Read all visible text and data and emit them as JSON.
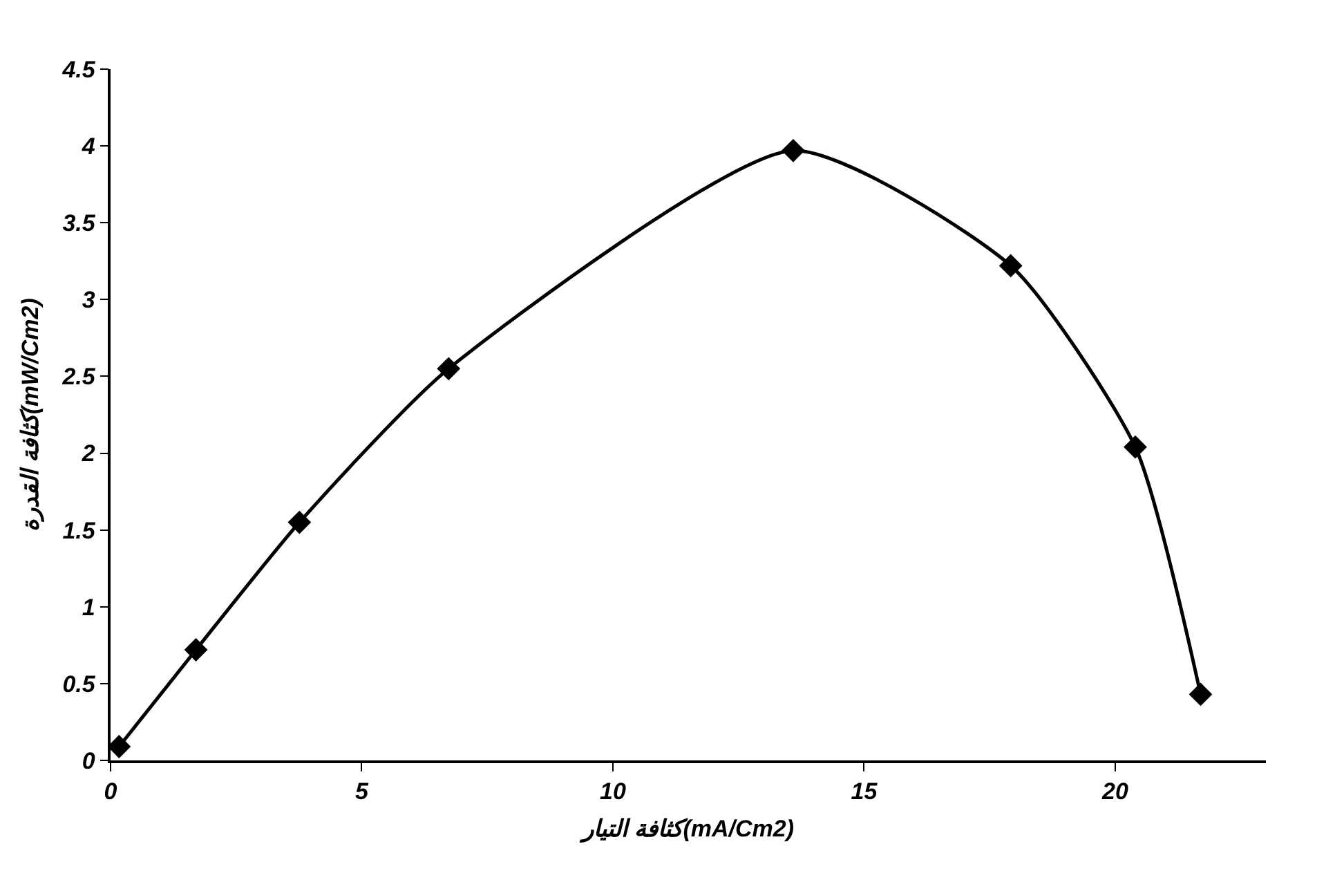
{
  "chart_data": {
    "type": "line",
    "xlabel": "كثافة التيار(mA/Cm2)",
    "ylabel": "كثافة القدرة(mW/Cm2)",
    "x": [
      0.17,
      1.7,
      3.76,
      6.73,
      13.59,
      17.92,
      20.4,
      21.7
    ],
    "series": [
      {
        "color": "#000000",
        "values": [
          0.09,
          0.72,
          1.55,
          2.55,
          3.97,
          3.22,
          2.04,
          0.43
        ]
      }
    ],
    "xlim": [
      0,
      23
    ],
    "xticks": [
      0,
      5,
      10,
      15,
      20
    ],
    "ylim": [
      0,
      4.5
    ],
    "yticks": [
      0,
      0.5,
      1,
      1.5,
      2,
      2.5,
      3,
      3.5,
      4,
      4.5
    ],
    "marker": "diamond",
    "line_style": "solid",
    "legend": false
  }
}
